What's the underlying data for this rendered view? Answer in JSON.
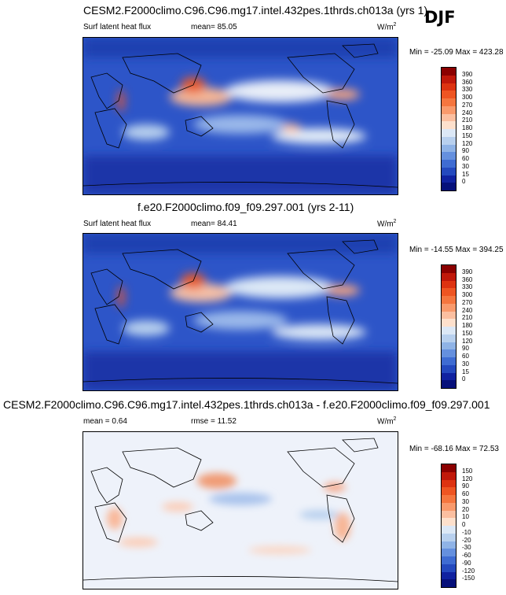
{
  "season": "DJF",
  "panels": [
    {
      "title": "CESM2.F2000climo.C96.C96.mg17.intel.432pes.1thrds.ch013a (yrs 1)",
      "left_label": "Surf latent heat flux",
      "center_label": "mean=  85.05",
      "units": "W/m",
      "units_sup": "2",
      "minmax": "Min = -25.09 Max = 423.28",
      "ticks": [
        "390",
        "360",
        "330",
        "300",
        "270",
        "240",
        "210",
        "180",
        "150",
        "120",
        "90",
        "60",
        "30",
        "15",
        "0"
      ],
      "colors": [
        "#8b0000",
        "#c0180a",
        "#dd3311",
        "#ee5522",
        "#f5763f",
        "#f99a6c",
        "#fbbfa0",
        "#fde0cc",
        "#dce8f6",
        "#b8d0ee",
        "#8fb3e6",
        "#6590de",
        "#3f6cd2",
        "#2449be",
        "#1022a0",
        "#06107a"
      ]
    },
    {
      "title": "f.e20.F2000climo.f09_f09.297.001 (yrs 2-11)",
      "left_label": "Surf latent heat flux",
      "center_label": "mean=  84.41",
      "units": "W/m",
      "units_sup": "2",
      "minmax": "Min = -14.55 Max = 394.25",
      "ticks": [
        "390",
        "360",
        "330",
        "300",
        "270",
        "240",
        "210",
        "180",
        "150",
        "120",
        "90",
        "60",
        "30",
        "15",
        "0"
      ],
      "colors": [
        "#8b0000",
        "#c0180a",
        "#dd3311",
        "#ee5522",
        "#f5763f",
        "#f99a6c",
        "#fbbfa0",
        "#fde0cc",
        "#dce8f6",
        "#b8d0ee",
        "#8fb3e6",
        "#6590de",
        "#3f6cd2",
        "#2449be",
        "#1022a0",
        "#06107a"
      ]
    },
    {
      "title": "CESM2.F2000climo.C96.C96.mg17.intel.432pes.1thrds.ch013a - f.e20.F2000climo.f09_f09.297.001",
      "left_label": "mean =  0.64",
      "center_label": "rmse =  11.52",
      "units": "W/m",
      "units_sup": "2",
      "minmax": "Min = -68.16 Max =  72.53",
      "ticks": [
        "150",
        "120",
        "90",
        "60",
        "30",
        "20",
        "10",
        "0",
        "-10",
        "-20",
        "-30",
        "-60",
        "-90",
        "-120",
        "-150"
      ],
      "colors": [
        "#8b0000",
        "#c0180a",
        "#dd3311",
        "#ee5522",
        "#f5763f",
        "#f99a6c",
        "#fbbfa0",
        "#fde0cc",
        "#dce8f6",
        "#b8d0ee",
        "#8fb3e6",
        "#6590de",
        "#3f6cd2",
        "#2449be",
        "#1022a0",
        "#06107a"
      ]
    }
  ]
}
